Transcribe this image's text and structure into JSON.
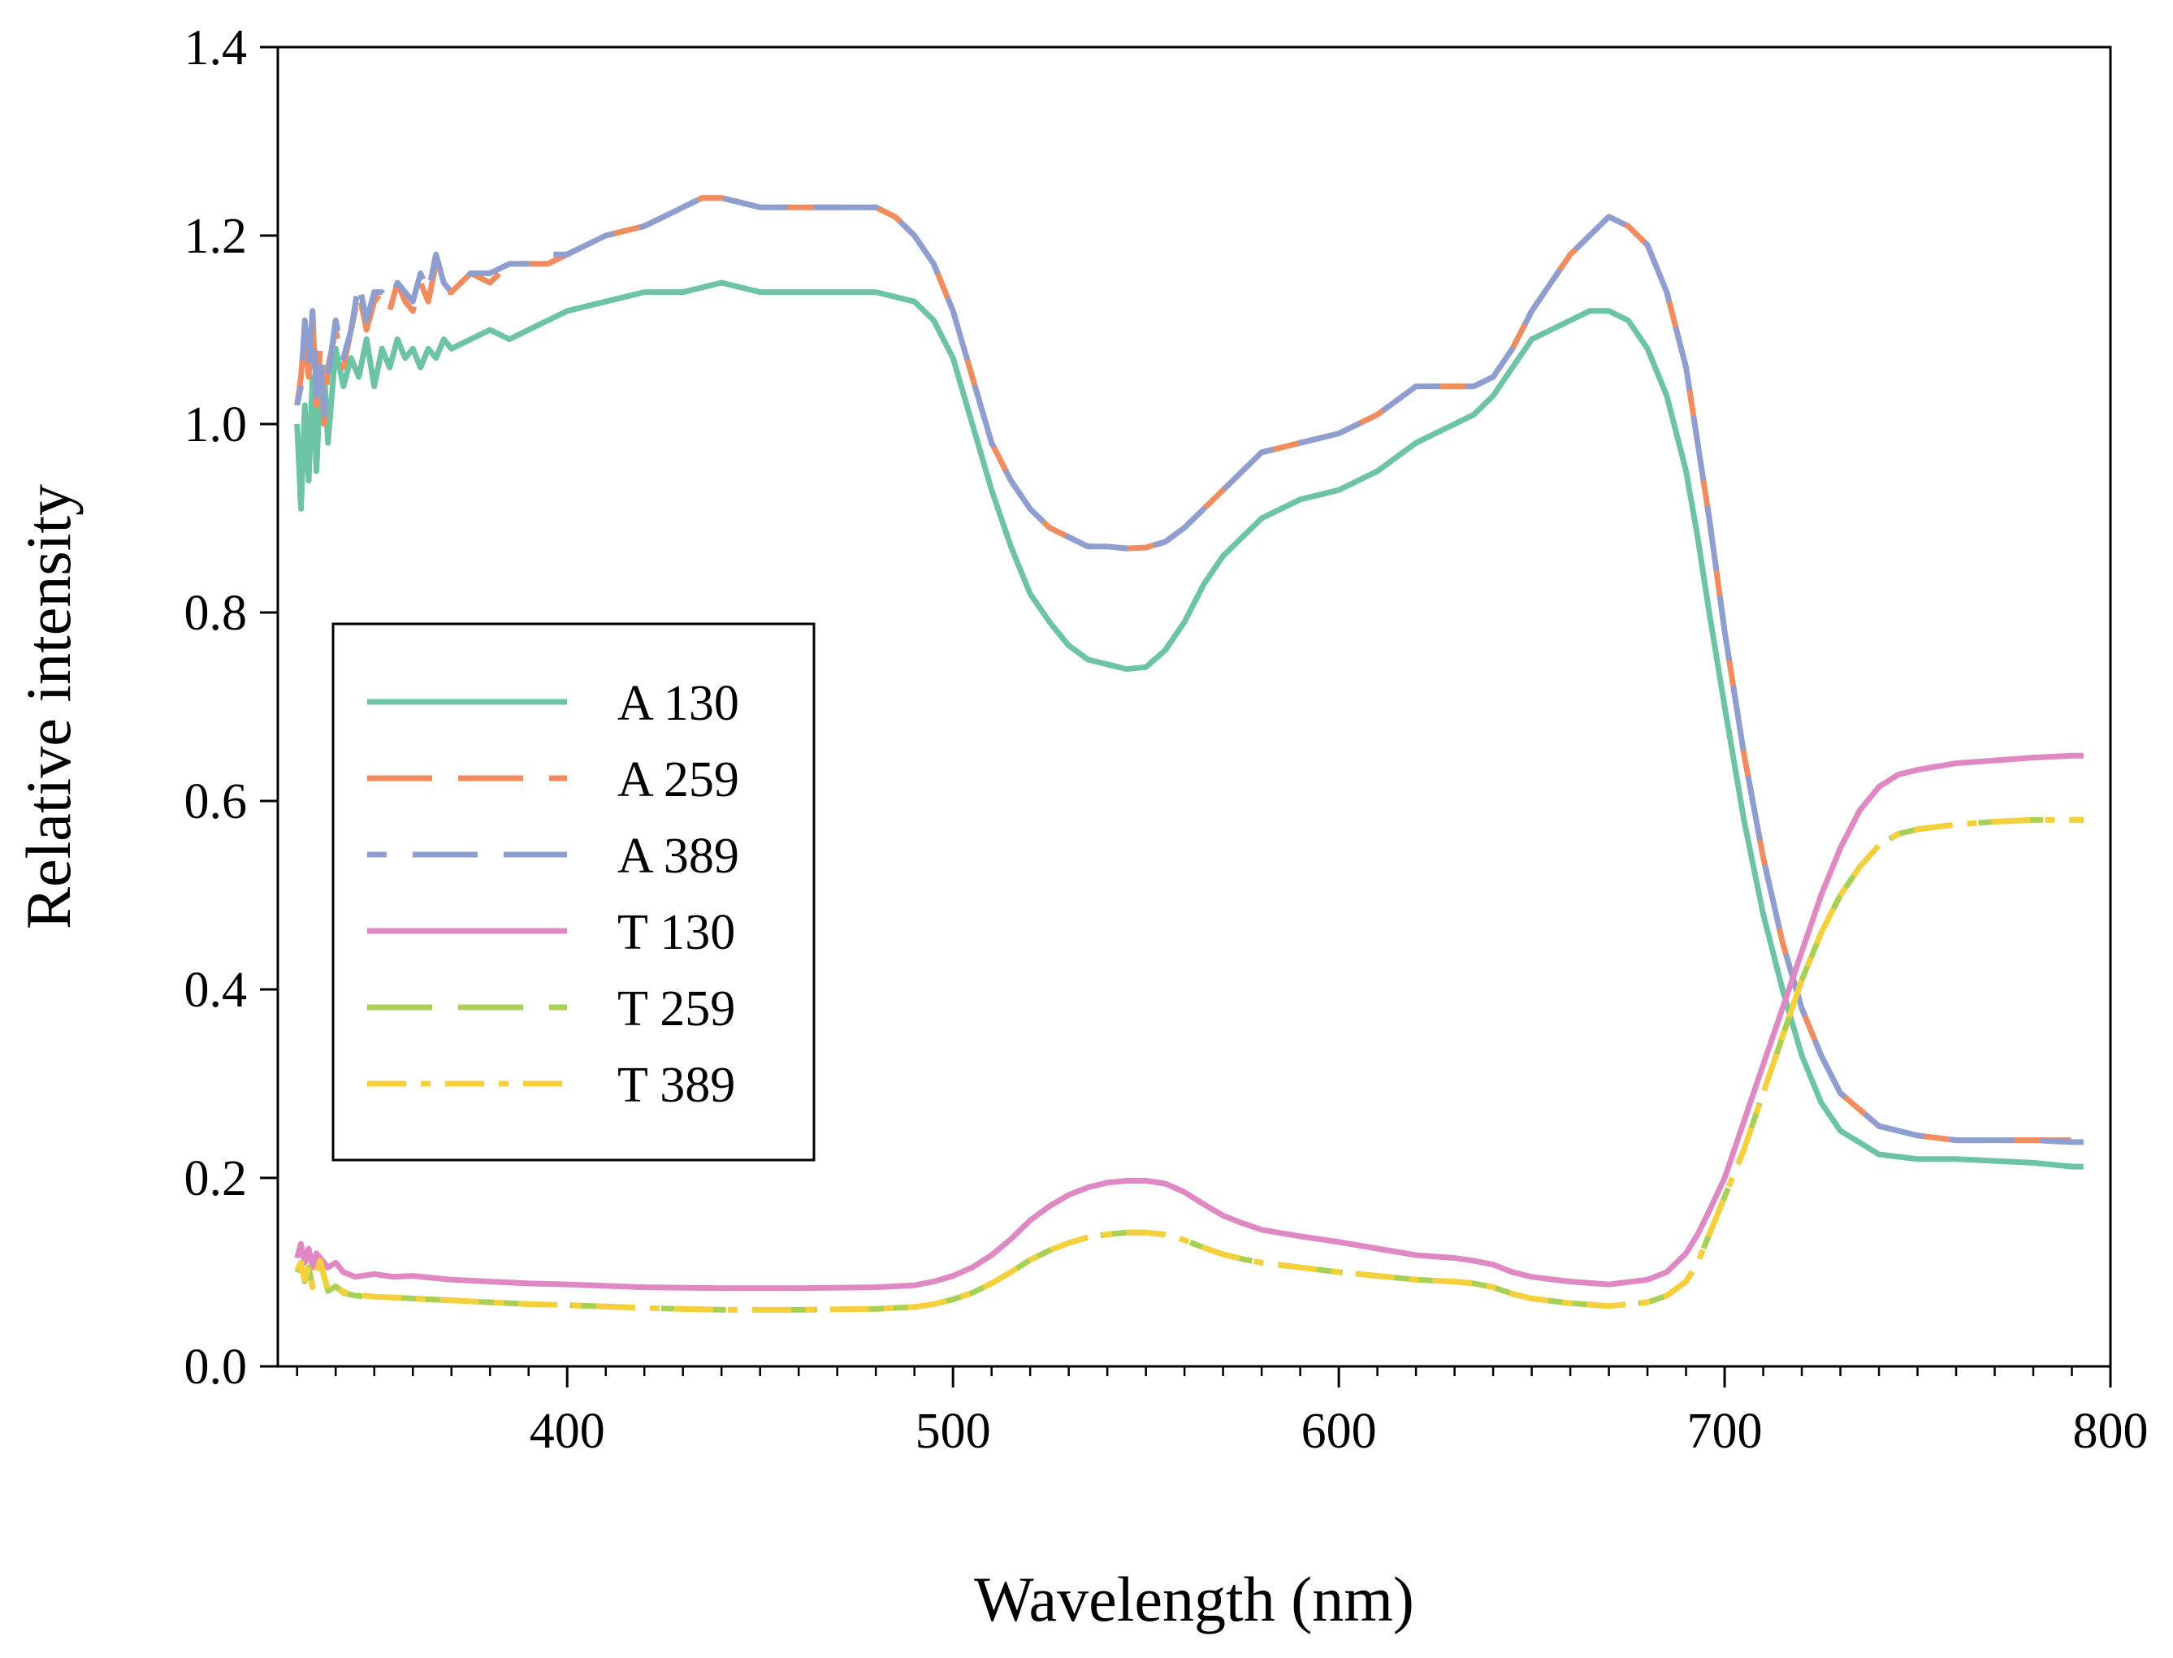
{
  "chart_data": {
    "type": "line",
    "title": "",
    "xlabel": "Wavelength (nm)",
    "ylabel": "Relative intensity",
    "xlim": [
      325,
      800
    ],
    "ylim": [
      0.0,
      1.4
    ],
    "xticks": [
      400,
      500,
      600,
      700,
      800
    ],
    "xtick_labels": [
      "400",
      "500",
      "600",
      "700",
      "800"
    ],
    "yticks": [
      0.0,
      0.2,
      0.4,
      0.6,
      0.8,
      1.0,
      1.2,
      1.4
    ],
    "ytick_labels": [
      "0.0",
      "0.2",
      "0.4",
      "0.6",
      "0.8",
      "1.0",
      "1.2",
      "1.4"
    ],
    "x_minor_step": 10,
    "grid": false,
    "legend_position": "center-left",
    "series": [
      {
        "name": "A 130",
        "color": "#6cc4a4",
        "dash": "solid",
        "x": [
          330,
          331,
          332,
          333,
          334,
          335,
          336,
          337,
          338,
          340,
          342,
          344,
          346,
          348,
          350,
          352,
          354,
          356,
          358,
          360,
          362,
          364,
          366,
          368,
          370,
          375,
          380,
          385,
          390,
          395,
          400,
          410,
          420,
          430,
          440,
          450,
          460,
          470,
          480,
          490,
          495,
          500,
          505,
          510,
          515,
          520,
          525,
          530,
          535,
          540,
          545,
          550,
          555,
          560,
          565,
          570,
          575,
          580,
          590,
          600,
          610,
          620,
          630,
          635,
          640,
          645,
          650,
          655,
          660,
          665,
          670,
          675,
          680,
          685,
          690,
          693,
          696,
          700,
          705,
          710,
          715,
          720,
          725,
          730,
          740,
          750,
          760,
          770,
          780,
          790,
          793
        ],
        "y": [
          1.0,
          0.91,
          1.02,
          0.94,
          1.05,
          0.95,
          1.04,
          1.06,
          0.98,
          1.08,
          1.04,
          1.07,
          1.05,
          1.09,
          1.04,
          1.08,
          1.06,
          1.09,
          1.07,
          1.08,
          1.06,
          1.08,
          1.07,
          1.09,
          1.08,
          1.09,
          1.1,
          1.09,
          1.1,
          1.11,
          1.12,
          1.13,
          1.14,
          1.14,
          1.15,
          1.14,
          1.14,
          1.14,
          1.14,
          1.13,
          1.11,
          1.07,
          1.0,
          0.93,
          0.87,
          0.82,
          0.79,
          0.765,
          0.75,
          0.745,
          0.74,
          0.742,
          0.76,
          0.79,
          0.83,
          0.86,
          0.88,
          0.9,
          0.92,
          0.93,
          0.95,
          0.98,
          1.0,
          1.01,
          1.03,
          1.06,
          1.09,
          1.1,
          1.11,
          1.12,
          1.12,
          1.11,
          1.08,
          1.03,
          0.95,
          0.88,
          0.8,
          0.7,
          0.58,
          0.48,
          0.4,
          0.33,
          0.28,
          0.25,
          0.225,
          0.22,
          0.22,
          0.218,
          0.216,
          0.212,
          0.212
        ]
      },
      {
        "name": "A 259",
        "color": "#f08c5e",
        "dash": "long-dash",
        "x": [
          330,
          331,
          332,
          333,
          334,
          335,
          336,
          337,
          338,
          340,
          342,
          344,
          346,
          348,
          350,
          352,
          354,
          356,
          358,
          360,
          362,
          364,
          366,
          368,
          370,
          375,
          380,
          385,
          390,
          395,
          400,
          410,
          420,
          425,
          430,
          435,
          440,
          450,
          460,
          470,
          480,
          485,
          490,
          495,
          500,
          505,
          510,
          515,
          520,
          525,
          530,
          535,
          540,
          545,
          550,
          555,
          560,
          565,
          570,
          575,
          580,
          590,
          600,
          610,
          620,
          630,
          635,
          640,
          645,
          650,
          655,
          660,
          665,
          670,
          675,
          680,
          685,
          690,
          693,
          696,
          700,
          705,
          710,
          715,
          720,
          725,
          730,
          740,
          750,
          760,
          770,
          780,
          790,
          793
        ],
        "y": [
          1.02,
          1.05,
          1.1,
          1.05,
          1.12,
          1.02,
          1.08,
          1.0,
          1.06,
          1.1,
          1.06,
          1.1,
          1.14,
          1.1,
          1.13,
          1.14,
          1.12,
          1.15,
          1.13,
          1.12,
          1.15,
          1.13,
          1.17,
          1.14,
          1.14,
          1.16,
          1.15,
          1.17,
          1.17,
          1.17,
          1.18,
          1.2,
          1.21,
          1.22,
          1.23,
          1.24,
          1.24,
          1.23,
          1.23,
          1.23,
          1.23,
          1.22,
          1.2,
          1.17,
          1.12,
          1.05,
          0.98,
          0.94,
          0.91,
          0.89,
          0.88,
          0.87,
          0.87,
          0.868,
          0.869,
          0.875,
          0.89,
          0.91,
          0.93,
          0.95,
          0.97,
          0.98,
          0.99,
          1.01,
          1.04,
          1.04,
          1.04,
          1.05,
          1.08,
          1.12,
          1.15,
          1.18,
          1.2,
          1.22,
          1.21,
          1.19,
          1.14,
          1.06,
          0.98,
          0.9,
          0.78,
          0.65,
          0.54,
          0.45,
          0.38,
          0.33,
          0.29,
          0.255,
          0.245,
          0.24,
          0.24,
          0.24,
          0.24,
          0.24
        ]
      },
      {
        "name": "A 389",
        "color": "#8e9ed0",
        "dash": "long-dash-offset",
        "x": [
          330,
          331,
          332,
          333,
          334,
          335,
          336,
          337,
          338,
          340,
          342,
          344,
          346,
          348,
          350,
          352,
          354,
          356,
          358,
          360,
          362,
          364,
          366,
          368,
          370,
          375,
          380,
          385,
          390,
          395,
          400,
          410,
          420,
          425,
          430,
          435,
          440,
          450,
          460,
          470,
          480,
          485,
          490,
          495,
          500,
          505,
          510,
          515,
          520,
          525,
          530,
          535,
          540,
          545,
          550,
          555,
          560,
          565,
          570,
          575,
          580,
          590,
          600,
          610,
          620,
          630,
          635,
          640,
          645,
          650,
          655,
          660,
          665,
          670,
          675,
          680,
          685,
          690,
          693,
          696,
          700,
          705,
          710,
          715,
          720,
          725,
          730,
          740,
          750,
          760,
          770,
          780,
          790,
          793
        ],
        "y": [
          1.02,
          1.04,
          1.11,
          1.06,
          1.12,
          1.03,
          1.07,
          1.01,
          1.05,
          1.11,
          1.07,
          1.1,
          1.15,
          1.11,
          1.14,
          1.14,
          1.13,
          1.15,
          1.14,
          1.13,
          1.16,
          1.14,
          1.18,
          1.15,
          1.14,
          1.16,
          1.16,
          1.17,
          1.17,
          1.18,
          1.18,
          1.2,
          1.21,
          1.22,
          1.23,
          1.24,
          1.24,
          1.23,
          1.23,
          1.23,
          1.23,
          1.22,
          1.2,
          1.17,
          1.12,
          1.05,
          0.98,
          0.94,
          0.91,
          0.89,
          0.88,
          0.87,
          0.87,
          0.868,
          0.869,
          0.875,
          0.89,
          0.91,
          0.93,
          0.95,
          0.97,
          0.98,
          0.99,
          1.01,
          1.04,
          1.04,
          1.04,
          1.05,
          1.08,
          1.12,
          1.15,
          1.18,
          1.2,
          1.22,
          1.21,
          1.19,
          1.14,
          1.06,
          0.98,
          0.9,
          0.78,
          0.65,
          0.54,
          0.45,
          0.38,
          0.33,
          0.29,
          0.255,
          0.245,
          0.24,
          0.24,
          0.24,
          0.238,
          0.238
        ]
      },
      {
        "name": "T 130",
        "color": "#df88c4",
        "dash": "solid",
        "x": [
          330,
          331,
          332,
          333,
          334,
          335,
          336,
          337,
          338,
          340,
          342,
          345,
          350,
          355,
          360,
          365,
          370,
          380,
          390,
          400,
          420,
          440,
          460,
          480,
          490,
          495,
          500,
          505,
          510,
          515,
          520,
          525,
          530,
          535,
          540,
          545,
          550,
          555,
          560,
          565,
          570,
          575,
          580,
          590,
          600,
          610,
          620,
          630,
          635,
          640,
          645,
          650,
          660,
          670,
          680,
          685,
          690,
          693,
          696,
          700,
          705,
          710,
          715,
          720,
          725,
          730,
          735,
          740,
          745,
          750,
          760,
          770,
          780,
          790,
          793
        ],
        "y": [
          0.115,
          0.13,
          0.11,
          0.125,
          0.105,
          0.12,
          0.115,
          0.11,
          0.105,
          0.11,
          0.1,
          0.095,
          0.098,
          0.095,
          0.096,
          0.094,
          0.092,
          0.09,
          0.088,
          0.087,
          0.084,
          0.083,
          0.083,
          0.084,
          0.086,
          0.09,
          0.096,
          0.105,
          0.118,
          0.135,
          0.155,
          0.17,
          0.182,
          0.19,
          0.195,
          0.197,
          0.197,
          0.194,
          0.185,
          0.172,
          0.16,
          0.152,
          0.145,
          0.138,
          0.132,
          0.125,
          0.118,
          0.115,
          0.112,
          0.108,
          0.1,
          0.095,
          0.09,
          0.087,
          0.092,
          0.1,
          0.12,
          0.14,
          0.165,
          0.2,
          0.26,
          0.32,
          0.38,
          0.44,
          0.5,
          0.55,
          0.59,
          0.615,
          0.628,
          0.633,
          0.64,
          0.643,
          0.646,
          0.648,
          0.648
        ]
      },
      {
        "name": "T 259",
        "color": "#a8d054",
        "dash": "long-dash",
        "x": [
          330,
          331,
          332,
          333,
          334,
          335,
          336,
          337,
          338,
          340,
          342,
          345,
          350,
          355,
          360,
          365,
          370,
          380,
          390,
          400,
          420,
          440,
          460,
          480,
          490,
          495,
          500,
          505,
          510,
          515,
          520,
          525,
          530,
          535,
          540,
          545,
          550,
          555,
          560,
          565,
          570,
          575,
          580,
          590,
          600,
          610,
          620,
          630,
          635,
          640,
          645,
          650,
          660,
          670,
          680,
          685,
          690,
          693,
          696,
          700,
          705,
          710,
          715,
          720,
          725,
          730,
          735,
          740,
          745,
          750,
          760,
          770,
          780,
          790,
          793
        ],
        "y": [
          0.1,
          0.11,
          0.09,
          0.105,
          0.085,
          0.1,
          0.11,
          0.095,
          0.08,
          0.085,
          0.078,
          0.075,
          0.074,
          0.073,
          0.072,
          0.071,
          0.07,
          0.068,
          0.066,
          0.065,
          0.062,
          0.06,
          0.06,
          0.061,
          0.063,
          0.066,
          0.071,
          0.078,
          0.088,
          0.1,
          0.113,
          0.123,
          0.131,
          0.137,
          0.14,
          0.142,
          0.142,
          0.14,
          0.134,
          0.126,
          0.119,
          0.114,
          0.11,
          0.105,
          0.1,
          0.096,
          0.092,
          0.09,
          0.088,
          0.084,
          0.077,
          0.072,
          0.067,
          0.064,
          0.068,
          0.075,
          0.09,
          0.11,
          0.14,
          0.18,
          0.23,
          0.29,
          0.35,
          0.41,
          0.46,
          0.5,
          0.53,
          0.553,
          0.565,
          0.57,
          0.575,
          0.578,
          0.58,
          0.58,
          0.58
        ]
      },
      {
        "name": "T 389",
        "color": "#f5d03c",
        "dash": "dash-dot",
        "x": [
          330,
          331,
          332,
          333,
          334,
          335,
          336,
          337,
          338,
          340,
          342,
          345,
          350,
          355,
          360,
          365,
          370,
          380,
          390,
          400,
          420,
          440,
          460,
          480,
          490,
          495,
          500,
          505,
          510,
          515,
          520,
          525,
          530,
          535,
          540,
          545,
          550,
          555,
          560,
          565,
          570,
          575,
          580,
          590,
          600,
          610,
          620,
          630,
          635,
          640,
          645,
          650,
          660,
          670,
          680,
          685,
          690,
          693,
          696,
          700,
          705,
          710,
          715,
          720,
          725,
          730,
          735,
          740,
          745,
          750,
          760,
          770,
          780,
          790,
          793
        ],
        "y": [
          0.102,
          0.11,
          0.092,
          0.106,
          0.084,
          0.1,
          0.112,
          0.096,
          0.082,
          0.086,
          0.079,
          0.076,
          0.074,
          0.073,
          0.072,
          0.071,
          0.07,
          0.068,
          0.066,
          0.065,
          0.062,
          0.06,
          0.06,
          0.061,
          0.063,
          0.066,
          0.071,
          0.078,
          0.088,
          0.1,
          0.113,
          0.123,
          0.131,
          0.137,
          0.14,
          0.142,
          0.142,
          0.14,
          0.134,
          0.126,
          0.119,
          0.114,
          0.11,
          0.105,
          0.1,
          0.096,
          0.092,
          0.09,
          0.088,
          0.084,
          0.077,
          0.072,
          0.067,
          0.064,
          0.068,
          0.075,
          0.09,
          0.11,
          0.14,
          0.18,
          0.23,
          0.29,
          0.35,
          0.41,
          0.46,
          0.5,
          0.53,
          0.553,
          0.565,
          0.57,
          0.575,
          0.578,
          0.58,
          0.58,
          0.58
        ]
      }
    ]
  }
}
